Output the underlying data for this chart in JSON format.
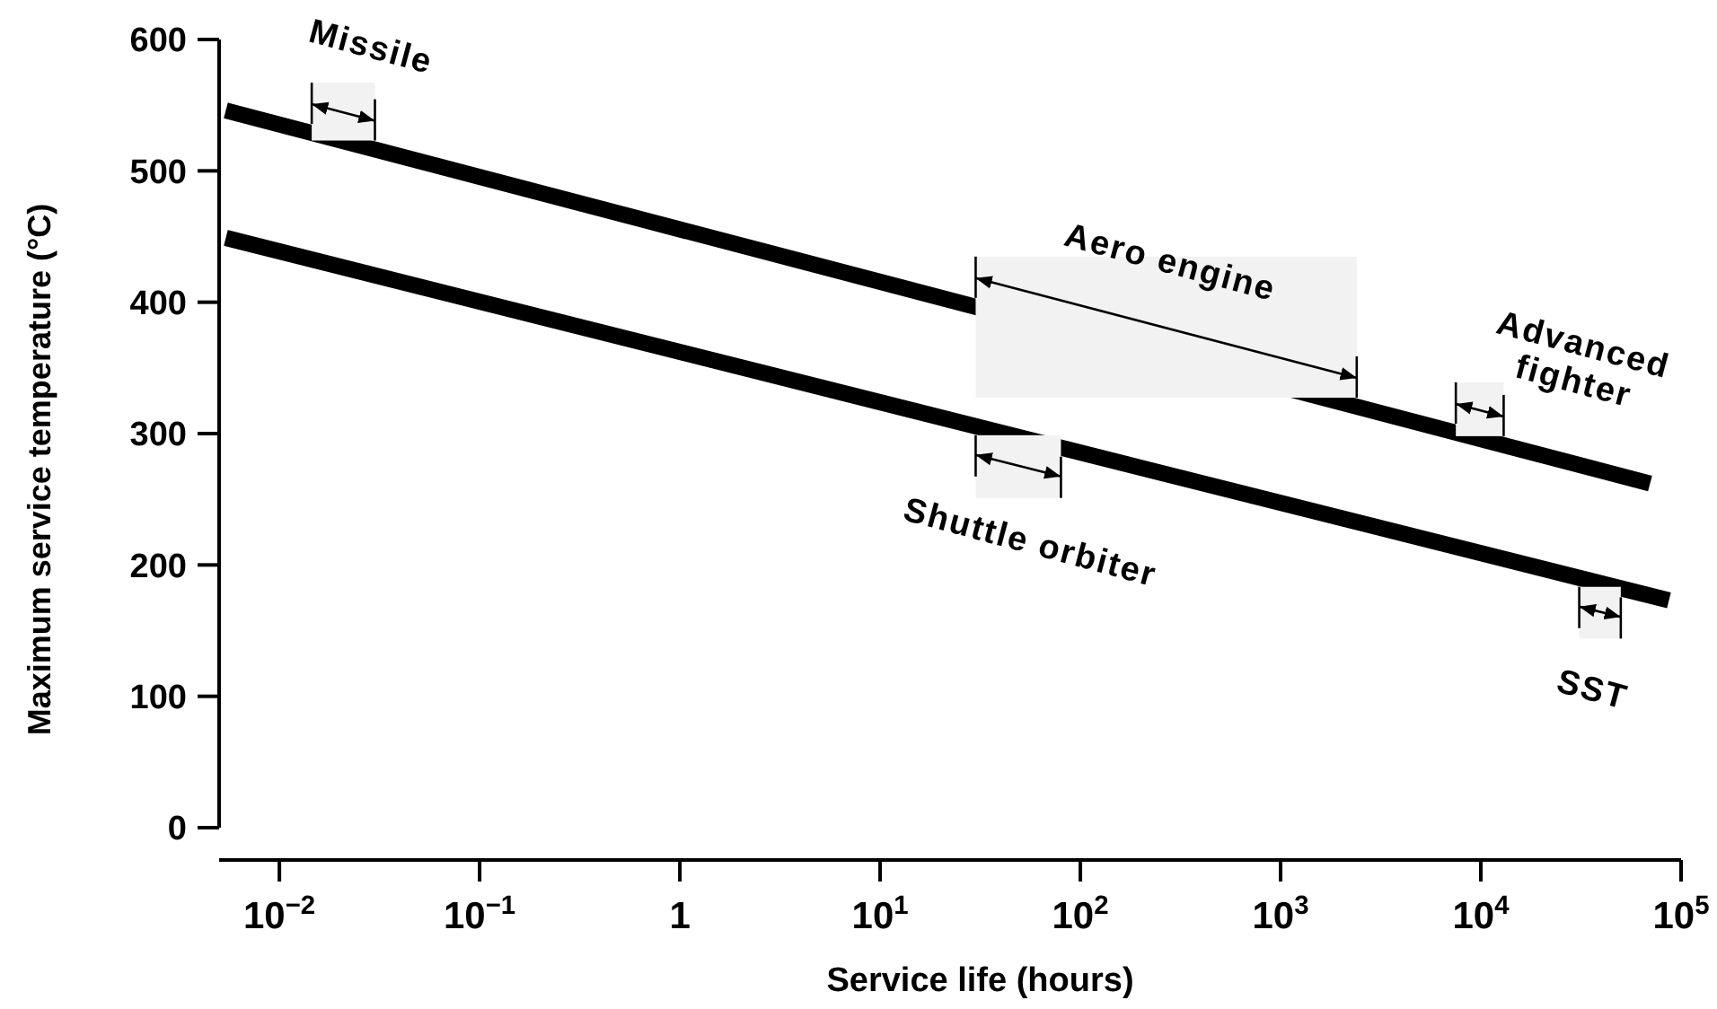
{
  "chart_data": {
    "type": "line",
    "xlabel": "Service life (hours)",
    "ylabel": "Maximum service temperature (°C)",
    "log": "x",
    "series": [
      {
        "color": "#000000",
        "x": [
          0.0054,
          70000
        ],
        "values": [
          546,
          262
        ]
      },
      {
        "color": "#000000",
        "x": [
          0.0054,
          87000
        ],
        "values": [
          449,
          173
        ]
      }
    ],
    "xlim": [
      0.005,
      100000
    ],
    "xticks": [
      {
        "value": 0.01,
        "label": "10$^{−2}$"
      },
      {
        "value": 0.1,
        "label": "10$^{−1}$"
      },
      1,
      {
        "value": 10,
        "label": "10$^{1}$"
      },
      {
        "value": 100,
        "label": "10$^{2}$"
      },
      {
        "value": 1000,
        "label": "10$^{3}$"
      },
      {
        "value": 10000,
        "label": "10$^{4}$"
      },
      {
        "value": 100000,
        "label": "10$^{5}$"
      }
    ],
    "ylim": [
      0,
      600
    ],
    "yticks": [
      0,
      100,
      200,
      300,
      400,
      500,
      600
    ],
    "grid": false,
    "legend": false,
    "marker": "none",
    "line_style": "solid",
    "bands": [
      {
        "axis": "x",
        "from": 0.0145,
        "to": 0.03,
        "label": "Missile"
      },
      {
        "axis": "x",
        "from": 30,
        "to": 2400,
        "label": "Aero engine"
      },
      {
        "axis": "x",
        "from": 7500,
        "to": 13000,
        "label": "Advanced fighter"
      },
      {
        "axis": "x",
        "from": 30,
        "to": 80,
        "label": "Shuttle orbiter"
      },
      {
        "axis": "x",
        "from": 31000,
        "to": 50000,
        "label": "SST"
      }
    ]
  }
}
